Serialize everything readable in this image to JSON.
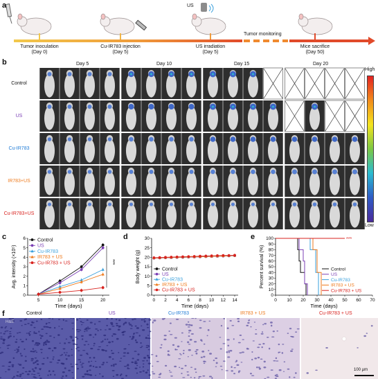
{
  "panel_labels": {
    "a": "a",
    "b": "b",
    "c": "c",
    "d": "d",
    "e": "e",
    "f": "f"
  },
  "timeline": {
    "events": [
      {
        "label": "Tumor inoculation",
        "sub": "(Day 0)"
      },
      {
        "label": "Cu-IR783 injection",
        "sub": "(Day  5)"
      },
      {
        "label": "US irradiation",
        "sub": "(Day  5)"
      },
      {
        "label": "Mice sacrifice",
        "sub": "(Day  50)"
      }
    ],
    "monitoring_label": "Tumor monitoring",
    "us_icon_label": "US"
  },
  "imaging": {
    "day_titles": [
      "Day 5",
      "Day 10",
      "Day 15",
      "Day 20"
    ],
    "row_labels": [
      {
        "text": "Control",
        "color": "#111111"
      },
      {
        "text": "US",
        "color": "#7b3fb5"
      },
      {
        "text": "Cu-IR783",
        "color": "#1f7bd6"
      },
      {
        "text": "IR783+US",
        "color": "#ee7a1c"
      },
      {
        "text": "Cu-IR783+US",
        "color": "#d8221e"
      }
    ],
    "colorbar": {
      "high": "High",
      "low": "Low"
    }
  },
  "colors": {
    "control": "#111111",
    "us": "#7b3fb5",
    "cu": "#3aa0dc",
    "ir": "#ee7a1c",
    "cuus": "#d8221e"
  },
  "chart_data": [
    {
      "type": "line",
      "xlabel": "Time (days)",
      "ylabel": "Avg. intensity (×10⁵)",
      "x": [
        5,
        10,
        15,
        20
      ],
      "xticks": [
        "5",
        "10",
        "15",
        "20"
      ],
      "ylim": [
        0,
        6
      ],
      "yticks": [
        "0",
        "1",
        "2",
        "3",
        "4",
        "5",
        "6"
      ],
      "annotation": "***",
      "series": [
        {
          "name": "Control",
          "values": [
            0.1,
            1.5,
            3.0,
            5.3
          ]
        },
        {
          "name": "US",
          "values": [
            0.1,
            1.3,
            2.7,
            5.0
          ]
        },
        {
          "name": "Cu-IR783",
          "values": [
            0.1,
            0.9,
            1.6,
            2.7
          ]
        },
        {
          "name": "IR783 + US",
          "values": [
            0.1,
            0.7,
            1.4,
            2.2
          ]
        },
        {
          "name": "Cu-IR783 + US",
          "values": [
            0.1,
            0.3,
            0.5,
            0.8
          ]
        }
      ]
    },
    {
      "type": "line",
      "xlabel": "Time (days)",
      "ylabel": "Body weight (g)",
      "x": [
        0,
        1,
        2,
        3,
        4,
        5,
        6,
        7,
        8,
        9,
        10,
        11,
        12,
        13,
        14
      ],
      "xticks": [
        "0",
        "2",
        "4",
        "6",
        "8",
        "10",
        "12",
        "14"
      ],
      "ylim": [
        0,
        30
      ],
      "yticks": [
        "0",
        "5",
        "10",
        "15",
        "20",
        "25",
        "30"
      ],
      "series": [
        {
          "name": "Control",
          "values": [
            19.6,
            19.7,
            19.8,
            19.9,
            20.0,
            20.0,
            20.1,
            20.2,
            20.3,
            20.4,
            20.5,
            20.6,
            20.7,
            20.8,
            20.9
          ]
        },
        {
          "name": "US",
          "values": [
            19.5,
            19.6,
            19.7,
            19.8,
            19.9,
            20.0,
            20.1,
            20.1,
            20.2,
            20.3,
            20.4,
            20.5,
            20.6,
            20.7,
            20.8
          ]
        },
        {
          "name": "Cu-IR783",
          "values": [
            19.7,
            19.8,
            19.8,
            19.9,
            20.0,
            20.1,
            20.2,
            20.3,
            20.4,
            20.4,
            20.5,
            20.6,
            20.7,
            20.8,
            20.9
          ]
        },
        {
          "name": "IR783 + US",
          "values": [
            19.6,
            19.7,
            19.8,
            19.9,
            20.0,
            20.1,
            20.2,
            20.2,
            20.3,
            20.4,
            20.5,
            20.6,
            20.7,
            20.8,
            20.9
          ]
        },
        {
          "name": "Cu-IR783 + US",
          "values": [
            19.8,
            19.9,
            20.0,
            20.1,
            20.2,
            20.3,
            20.4,
            20.5,
            20.6,
            20.7,
            20.8,
            20.9,
            21.0,
            21.0,
            21.1
          ]
        }
      ]
    },
    {
      "type": "line",
      "xlabel": "Time (days)",
      "ylabel": "Percent survival (%)",
      "xlim": [
        0,
        70
      ],
      "xticks": [
        "0",
        "10",
        "20",
        "30",
        "40",
        "50",
        "60",
        "70"
      ],
      "ylim": [
        0,
        100
      ],
      "yticks": [
        "0",
        "10",
        "20",
        "30",
        "40",
        "50",
        "60",
        "70",
        "80",
        "90",
        "100"
      ],
      "annotation": "***",
      "series": [
        {
          "name": "Control",
          "steps": [
            [
              0,
              100
            ],
            [
              16,
              100
            ],
            [
              16,
              80
            ],
            [
              17,
              80
            ],
            [
              17,
              60
            ],
            [
              18,
              60
            ],
            [
              18,
              40
            ],
            [
              21,
              40
            ],
            [
              21,
              20
            ],
            [
              22,
              20
            ],
            [
              22,
              0
            ]
          ]
        },
        {
          "name": "US",
          "steps": [
            [
              0,
              100
            ],
            [
              17,
              100
            ],
            [
              17,
              80
            ],
            [
              20,
              80
            ],
            [
              20,
              60
            ],
            [
              21,
              60
            ],
            [
              21,
              20
            ],
            [
              23,
              20
            ],
            [
              23,
              0
            ]
          ]
        },
        {
          "name": "Cu-IR783",
          "steps": [
            [
              0,
              100
            ],
            [
              25,
              100
            ],
            [
              25,
              80
            ],
            [
              29,
              80
            ],
            [
              29,
              40
            ],
            [
              31,
              40
            ],
            [
              31,
              0
            ]
          ]
        },
        {
          "name": "IR783 + US",
          "steps": [
            [
              0,
              100
            ],
            [
              27,
              100
            ],
            [
              27,
              80
            ],
            [
              30,
              80
            ],
            [
              30,
              40
            ],
            [
              33,
              40
            ],
            [
              33,
              0
            ]
          ]
        },
        {
          "name": "Cu-IR783 + US",
          "steps": [
            [
              0,
              100
            ],
            [
              50,
              100
            ]
          ]
        }
      ]
    }
  ],
  "histology": {
    "titles": [
      {
        "text": "Control",
        "color": "#111111"
      },
      {
        "text": "US",
        "color": "#7b3fb5"
      },
      {
        "text": "Cu-IR783",
        "color": "#1f7bd6"
      },
      {
        "text": "IR783 + US",
        "color": "#ee7a1c"
      },
      {
        "text": "Cu-IR783 + US",
        "color": "#d8221e"
      }
    ],
    "scale_bar": "100 µm",
    "stain_label": "H&E"
  }
}
